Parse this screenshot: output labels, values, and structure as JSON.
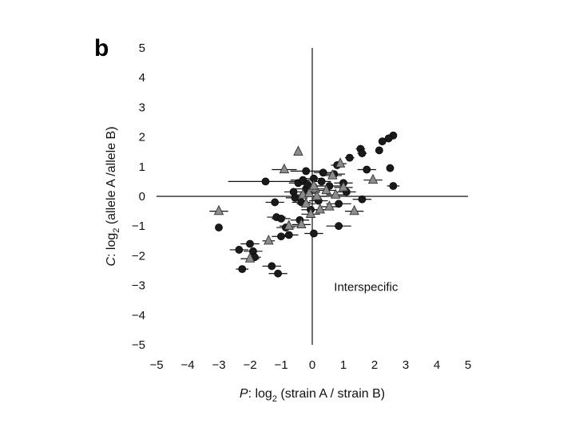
{
  "panel_label": "b",
  "chart_data": {
    "type": "scatter",
    "panel_label": "b",
    "xlabel_italic": "P",
    "xlabel_rest": ": log",
    "xlabel_sub": "2",
    "xlabel_tail": " (strain A / strain B)",
    "ylabel_italic": "C",
    "ylabel_rest": ": log",
    "ylabel_sub": "2",
    "ylabel_tail": " (allele A /allele B)",
    "xlim": [
      -5,
      5
    ],
    "ylim": [
      -5,
      5
    ],
    "x_ticks": [
      -5,
      -4,
      -3,
      -2,
      -1,
      0,
      1,
      2,
      3,
      4,
      5
    ],
    "y_ticks": [
      5,
      4,
      3,
      2,
      1,
      0,
      -1,
      -2,
      -3,
      -4,
      -5
    ],
    "x_tick_labels": [
      "−5",
      "−4",
      "−3",
      "−2",
      "−1",
      "0",
      "1",
      "2",
      "3",
      "4",
      "5"
    ],
    "y_tick_labels": [
      "5",
      "4",
      "3",
      "2",
      "1",
      "0",
      "−1",
      "−2",
      "−3",
      "−4",
      "−5"
    ],
    "annotations": [
      {
        "text": "Interspecific",
        "x": 0.7,
        "y": -3.05
      }
    ],
    "colors": {
      "circle": "#1a1a1a",
      "triangle": "#8c8c8c",
      "triangle_edge": "#333333",
      "error_bar": "#111111"
    },
    "series": [
      {
        "marker": "circle",
        "points": [
          {
            "x": 2.6,
            "y": 2.05,
            "xerr": 0.1
          },
          {
            "x": 2.45,
            "y": 1.95,
            "xerr": 0.1
          },
          {
            "x": 2.25,
            "y": 1.85,
            "xerr": 0.1
          },
          {
            "x": 2.15,
            "y": 1.55,
            "xerr": 0.1
          },
          {
            "x": 1.55,
            "y": 1.6,
            "xerr": 0.15
          },
          {
            "x": 1.6,
            "y": 1.45,
            "xerr": 0.15
          },
          {
            "x": 1.2,
            "y": 1.3,
            "xerr": 0.15
          },
          {
            "x": 2.5,
            "y": 0.95,
            "xerr": 0.1
          },
          {
            "x": 1.75,
            "y": 0.9,
            "xerr": 0.3
          },
          {
            "x": 2.6,
            "y": 0.35,
            "xerr": 0.2
          },
          {
            "x": 0.8,
            "y": 1.05,
            "xerr": 0.2
          },
          {
            "x": 0.7,
            "y": 0.75,
            "xerr": 0.35
          },
          {
            "x": -0.2,
            "y": 0.85,
            "xerr": 0.5
          },
          {
            "x": 0.35,
            "y": 0.8,
            "xerr": 0.3
          },
          {
            "x": -1.5,
            "y": 0.5,
            "xerr": 1.2
          },
          {
            "x": -0.45,
            "y": 0.45,
            "xerr": 0.3
          },
          {
            "x": -0.3,
            "y": 0.55,
            "xerr": 0.4
          },
          {
            "x": -0.2,
            "y": 0.25,
            "xerr": 0.4
          },
          {
            "x": -0.6,
            "y": 0.15,
            "xerr": 0.3
          },
          {
            "x": -0.15,
            "y": 0.4,
            "xerr": 0.3
          },
          {
            "x": 0.05,
            "y": 0.6,
            "xerr": 0.3
          },
          {
            "x": 0.3,
            "y": 0.5,
            "xerr": 0.3
          },
          {
            "x": 0.55,
            "y": 0.35,
            "xerr": 0.5
          },
          {
            "x": 1.0,
            "y": 0.45,
            "xerr": 0.3
          },
          {
            "x": 1.1,
            "y": 0.15,
            "xerr": 0.3
          },
          {
            "x": 1.6,
            "y": -0.1,
            "xerr": 0.3
          },
          {
            "x": 0.85,
            "y": -0.25,
            "xerr": 0.4
          },
          {
            "x": 0.2,
            "y": -0.15,
            "xerr": 0.3
          },
          {
            "x": -0.35,
            "y": -0.2,
            "xerr": 0.3
          },
          {
            "x": -0.55,
            "y": -0.05,
            "xerr": 0.3
          },
          {
            "x": -1.2,
            "y": -0.2,
            "xerr": 0.3
          },
          {
            "x": -0.05,
            "y": -0.45,
            "xerr": 0.3
          },
          {
            "x": -0.4,
            "y": -0.8,
            "xerr": 0.3
          },
          {
            "x": -1.15,
            "y": -0.7,
            "xerr": 0.3
          },
          {
            "x": -1.0,
            "y": -0.75,
            "xerr": 0.3
          },
          {
            "x": -0.85,
            "y": -1.05,
            "xerr": 0.3
          },
          {
            "x": -0.75,
            "y": -1.3,
            "xerr": 0.3
          },
          {
            "x": -1.0,
            "y": -1.35,
            "xerr": 0.3
          },
          {
            "x": 0.05,
            "y": -1.25,
            "xerr": 0.3
          },
          {
            "x": 0.85,
            "y": -1.0,
            "xerr": 0.4
          },
          {
            "x": -3.0,
            "y": -1.05,
            "xerr": 0.1
          },
          {
            "x": -2.35,
            "y": -1.8,
            "xerr": 0.3
          },
          {
            "x": -2.0,
            "y": -1.6,
            "xerr": 0.3
          },
          {
            "x": -1.9,
            "y": -1.85,
            "xerr": 0.3
          },
          {
            "x": -2.25,
            "y": -2.45,
            "xerr": 0.2
          },
          {
            "x": -1.3,
            "y": -2.35,
            "xerr": 0.3
          },
          {
            "x": -1.1,
            "y": -2.6,
            "xerr": 0.3
          },
          {
            "x": -1.85,
            "y": -2.05,
            "xerr": 0.2
          }
        ]
      },
      {
        "marker": "triangle",
        "points": [
          {
            "x": -3.0,
            "y": -0.5,
            "xerr": 0.3
          },
          {
            "x": -0.45,
            "y": 1.5,
            "xerr": 0.1
          },
          {
            "x": -0.9,
            "y": 0.9,
            "xerr": 0.4
          },
          {
            "x": 0.9,
            "y": 1.1,
            "xerr": 0.2
          },
          {
            "x": 0.65,
            "y": 0.7,
            "xerr": 0.3
          },
          {
            "x": 1.0,
            "y": 0.3,
            "xerr": 0.3
          },
          {
            "x": 1.95,
            "y": 0.55,
            "xerr": 0.3
          },
          {
            "x": -0.3,
            "y": 0.05,
            "xerr": 0.3
          },
          {
            "x": -0.1,
            "y": 0.1,
            "xerr": 0.3
          },
          {
            "x": 0.1,
            "y": 0.25,
            "xerr": 0.4
          },
          {
            "x": 0.45,
            "y": 0.2,
            "xerr": 0.3
          },
          {
            "x": 0.15,
            "y": 0.0,
            "xerr": 0.3
          },
          {
            "x": -0.2,
            "y": -0.25,
            "xerr": 0.3
          },
          {
            "x": 0.25,
            "y": -0.45,
            "xerr": 0.3
          },
          {
            "x": -0.05,
            "y": -0.6,
            "xerr": 0.3
          },
          {
            "x": 0.55,
            "y": -0.35,
            "xerr": 0.3
          },
          {
            "x": 0.75,
            "y": 0.05,
            "xerr": 0.3
          },
          {
            "x": 1.35,
            "y": -0.5,
            "xerr": 0.3
          },
          {
            "x": -0.75,
            "y": -1.0,
            "xerr": 0.3
          },
          {
            "x": -0.35,
            "y": -0.95,
            "xerr": 0.3
          },
          {
            "x": -2.0,
            "y": -2.1,
            "xerr": 0.3
          },
          {
            "x": -1.4,
            "y": -1.5,
            "xerr": 0.2
          },
          {
            "x": 0.05,
            "y": 0.35,
            "xerr": 0.3
          }
        ]
      }
    ]
  }
}
